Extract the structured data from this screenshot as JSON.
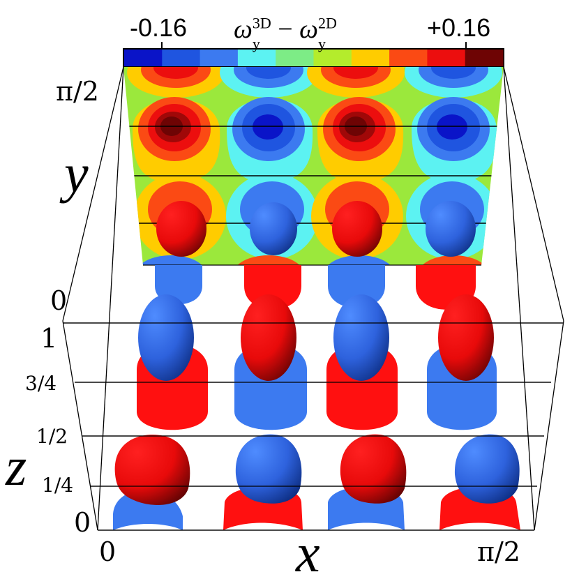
{
  "colorbar": {
    "min_label": "-0.16",
    "max_label": "+0.16",
    "title": {
      "symbol": "ω",
      "sub": "y",
      "sup1": "3D",
      "minus": "−",
      "sup2": "2D"
    },
    "colors": [
      "#0a14c8",
      "#1f55e0",
      "#3c7af0",
      "#5cf2f2",
      "#7dec86",
      "#b4ec2c",
      "#ffcc00",
      "#fb4a14",
      "#ec0e0e",
      "#6e0404"
    ]
  },
  "axes": {
    "y": {
      "label": "y",
      "ticks": [
        "0",
        "π/2"
      ]
    },
    "z": {
      "label": "z",
      "ticks": [
        "0",
        "1/4",
        "1/2",
        "3/4",
        "1"
      ]
    },
    "x": {
      "label": "x",
      "ticks": [
        "0",
        "π/2"
      ]
    }
  },
  "legend": {
    "positive_color": "#ff1010",
    "negative_color": "#3c7af0"
  }
}
